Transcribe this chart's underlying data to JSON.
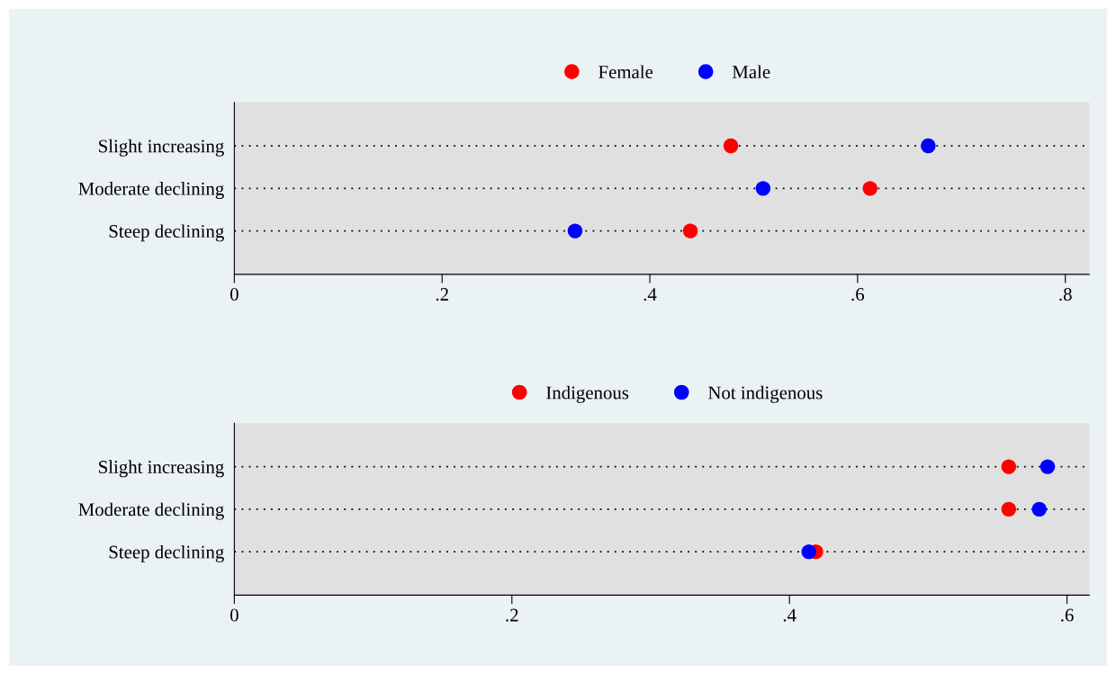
{
  "chart_data": [
    {
      "type": "scatter",
      "orientation": "horizontal",
      "categories": [
        "Slight increasing",
        "Moderate declining",
        "Steep declining"
      ],
      "series": [
        {
          "name": "Female",
          "color": "#ff0000",
          "values": [
            0.478,
            0.612,
            0.439
          ]
        },
        {
          "name": "Male",
          "color": "#0000ff",
          "values": [
            0.668,
            0.509,
            0.328
          ]
        }
      ],
      "xlim": [
        0,
        0.823
      ],
      "xticks": [
        0,
        {
          "value": 0.2,
          "label": ".2"
        },
        {
          "value": 0.4,
          "label": ".4"
        },
        {
          "value": 0.6,
          "label": ".6"
        },
        {
          "value": 0.8,
          "label": ".8"
        }
      ],
      "grid": "y",
      "legend": "top",
      "marker": "circle"
    },
    {
      "type": "scatter",
      "orientation": "horizontal",
      "categories": [
        "Slight increasing",
        "Moderate declining",
        "Steep declining"
      ],
      "series": [
        {
          "name": "Indigenous",
          "color": "#ff0000",
          "values": [
            0.558,
            0.558,
            0.419
          ]
        },
        {
          "name": "Not indigenous",
          "color": "#0000ff",
          "values": [
            0.586,
            0.58,
            0.414
          ]
        }
      ],
      "xlim": [
        0,
        0.616
      ],
      "xticks": [
        0,
        {
          "value": 0.2,
          "label": ".2"
        },
        {
          "value": 0.4,
          "label": ".4"
        },
        {
          "value": 0.6,
          "label": ".6"
        }
      ],
      "grid": "y",
      "legend": "top",
      "marker": "circle"
    }
  ]
}
